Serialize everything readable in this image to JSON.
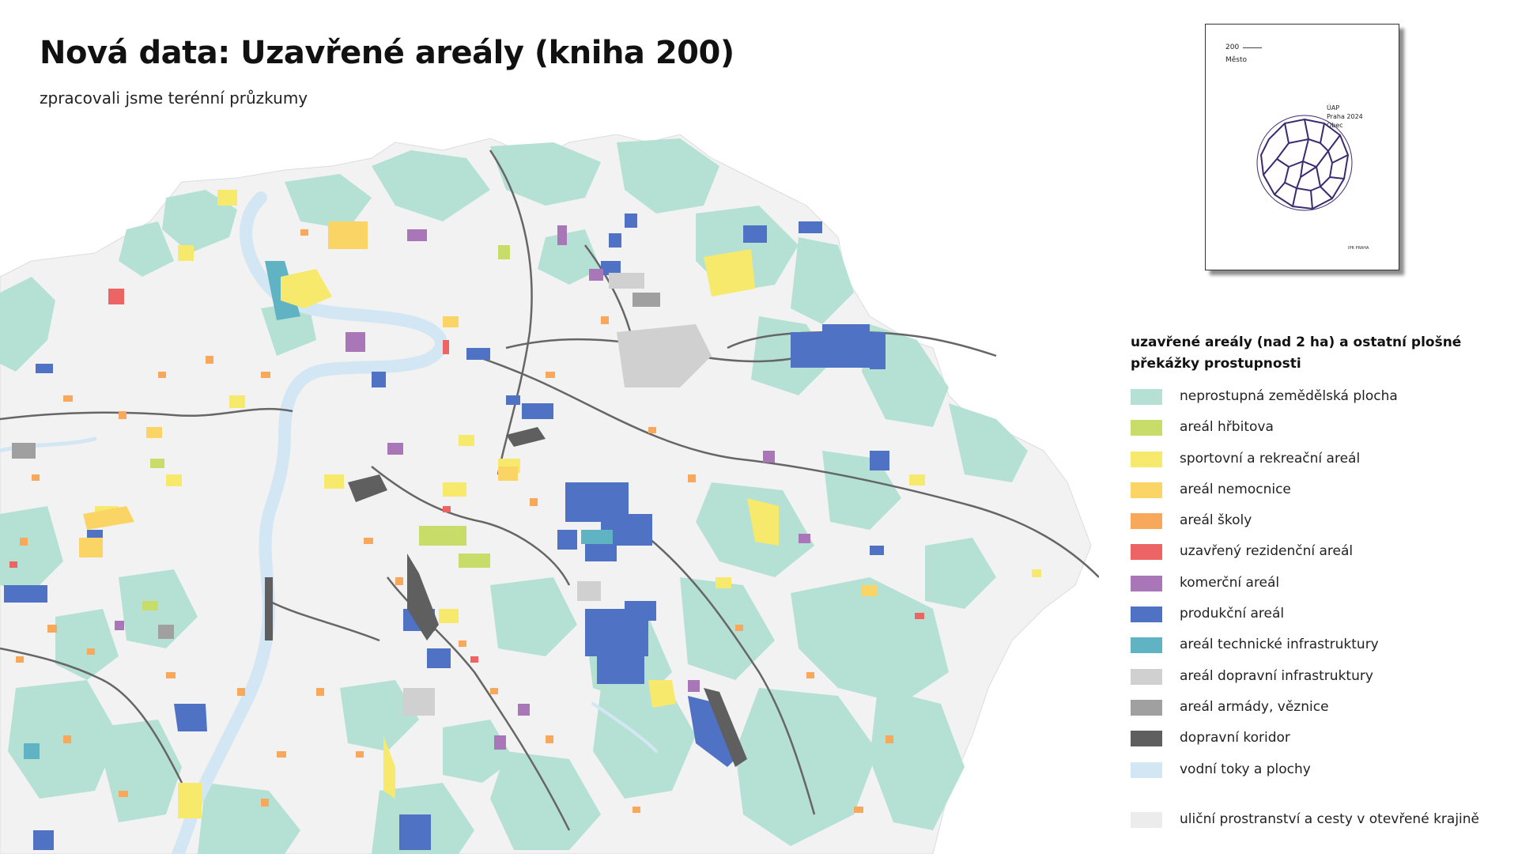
{
  "header": {
    "title": "Nová data: Uzavřené areály (kniha 200)",
    "subtitle": "zpracovali jsme terénní průzkumy"
  },
  "book_cover": {
    "number": "200",
    "label": "Město",
    "publisher_line1": "ÚAP",
    "publisher_line2": "Praha 2024",
    "publisher_line3": "Obec",
    "logo_text": "IPR PRAHA"
  },
  "legend": {
    "heading": "uzavřené areály (nad 2 ha) a ostatní plošné překážky prostupnosti",
    "items": [
      {
        "label": "neprostupná zemědělská plocha",
        "color": "#b5e1d5"
      },
      {
        "label": "areál hřbitova",
        "color": "#c8dc6a"
      },
      {
        "label": "sportovní a rekreační areál",
        "color": "#f7e96b"
      },
      {
        "label": "areál nemocnice",
        "color": "#fad565"
      },
      {
        "label": "areál školy",
        "color": "#f7a85a"
      },
      {
        "label": "uzavřený rezidenční areál",
        "color": "#ec6464"
      },
      {
        "label": "komerční areál",
        "color": "#a977b7"
      },
      {
        "label": "produkční areál",
        "color": "#4f72c4"
      },
      {
        "label": "areál technické infrastruktury",
        "color": "#5fb3c2"
      },
      {
        "label": "areál dopravní infrastruktury",
        "color": "#d0d0d0"
      },
      {
        "label": "areál armády, věznice",
        "color": "#a0a0a0"
      },
      {
        "label": "dopravní koridor",
        "color": "#5f5f5f"
      },
      {
        "label": "vodní toky a plochy",
        "color": "#d3e6f4"
      }
    ],
    "extra_item": {
      "label": "uliční prostranství a cesty v otevřené krajině",
      "color": "#ececec"
    }
  },
  "map": {
    "colors": {
      "agri": "#b5e1d5",
      "cemetery": "#c8dc6a",
      "sport": "#f7e96b",
      "hospital": "#fad565",
      "school": "#f7a85a",
      "residential": "#ec6464",
      "commercial": "#a977b7",
      "production": "#4f72c4",
      "tech": "#5fb3c2",
      "transport": "#d0d0d0",
      "army": "#a0a0a0",
      "corridor": "#5f5f5f",
      "water": "#d3e6f4",
      "street": "#ececec"
    }
  }
}
